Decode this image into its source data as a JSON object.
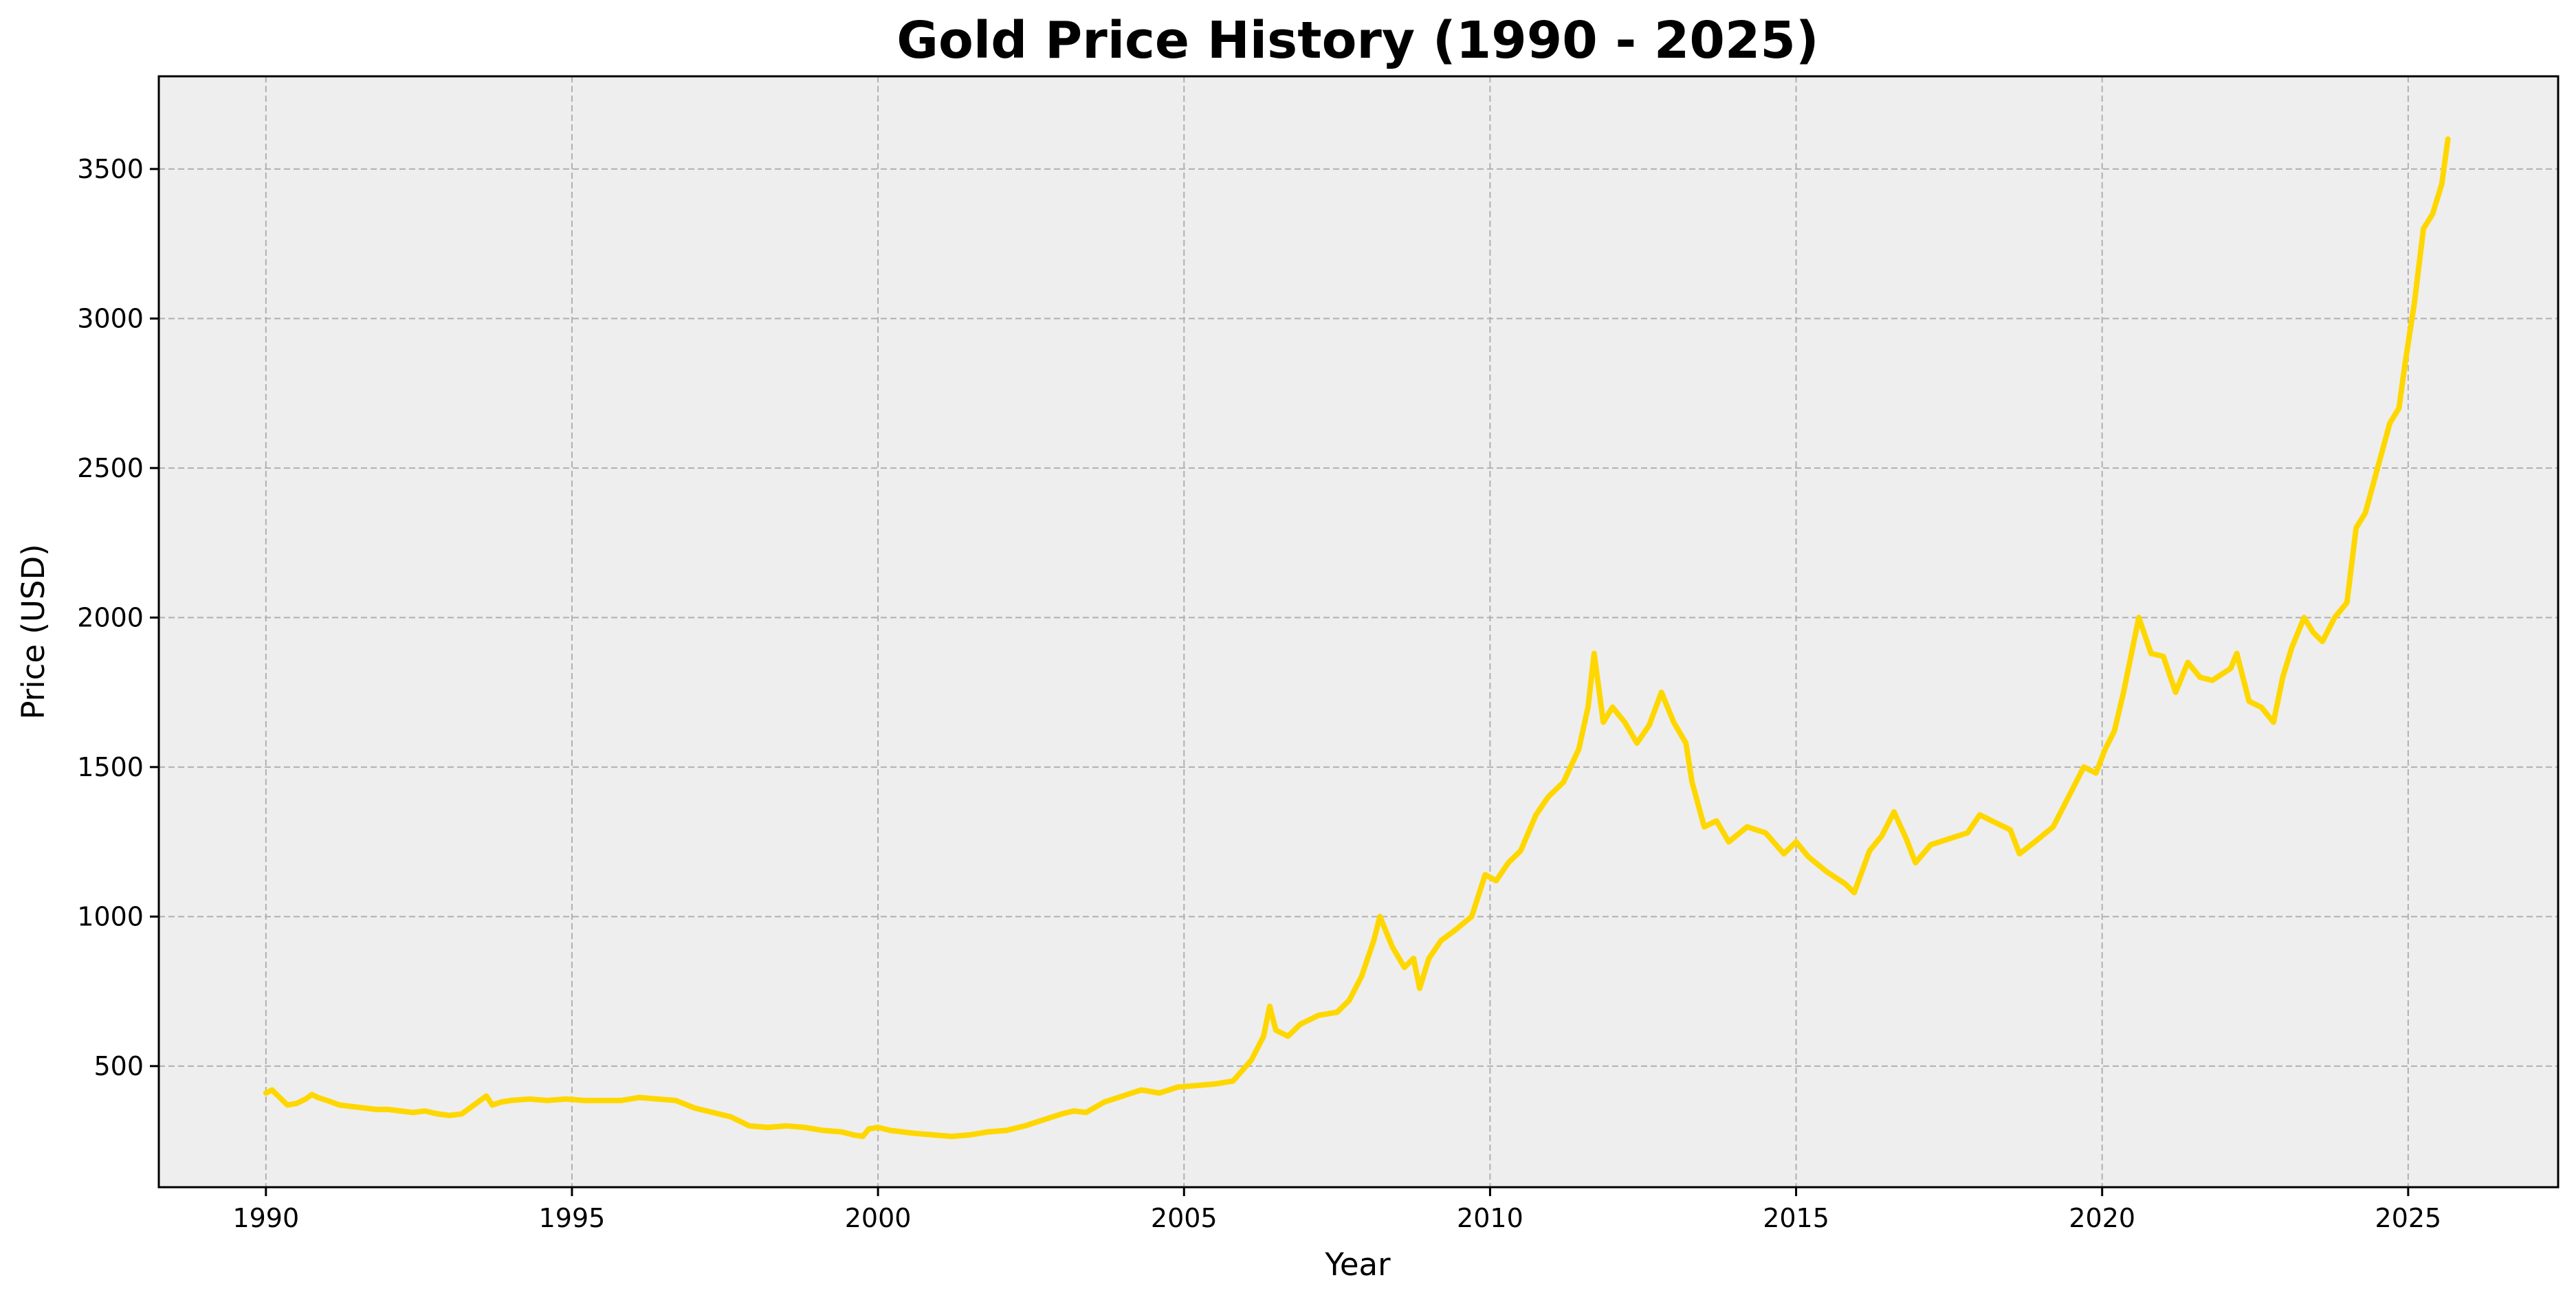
{
  "chart_data": {
    "type": "line",
    "title": "Gold Price History (1990 - 2025)",
    "xlabel": "Year",
    "ylabel": "Price (USD)",
    "xlim": [
      1988.25,
      2027.45
    ],
    "ylim": [
      95,
      3810
    ],
    "x_ticks": [
      1990,
      1995,
      2000,
      2005,
      2010,
      2015,
      2020,
      2025
    ],
    "y_ticks": [
      500,
      1000,
      1500,
      2000,
      2500,
      3000,
      3500
    ],
    "grid": true,
    "legend": "none",
    "colors": {
      "line": "#FFD700",
      "plot_background": "#EEEEEE",
      "grid": "#B0B0B0"
    },
    "series": [
      {
        "x": [
          1990.0,
          1990.1,
          1990.2,
          1990.35,
          1990.5,
          1990.65,
          1990.75,
          1990.85,
          1991.0,
          1991.2,
          1991.4,
          1991.6,
          1991.8,
          1992.0,
          1992.2,
          1992.4,
          1992.6,
          1992.8,
          1993.0,
          1993.2,
          1993.4,
          1993.6,
          1993.7,
          1993.85,
          1994.0,
          1994.3,
          1994.6,
          1994.9,
          1995.2,
          1995.5,
          1995.8,
          1996.1,
          1996.4,
          1996.7,
          1997.0,
          1997.3,
          1997.6,
          1997.9,
          1998.2,
          1998.5,
          1998.8,
          1999.1,
          1999.4,
          1999.6,
          1999.75,
          1999.85,
          2000.0,
          2000.2,
          2000.4,
          2000.6,
          2000.9,
          2001.2,
          2001.5,
          2001.8,
          2002.1,
          2002.4,
          2002.7,
          2003.0,
          2003.2,
          2003.4,
          2003.7,
          2004.0,
          2004.3,
          2004.6,
          2004.9,
          2005.2,
          2005.5,
          2005.8,
          2006.1,
          2006.3,
          2006.4,
          2006.5,
          2006.7,
          2006.9,
          2007.2,
          2007.5,
          2007.7,
          2007.9,
          2008.1,
          2008.2,
          2008.4,
          2008.6,
          2008.75,
          2008.85,
          2009.0,
          2009.2,
          2009.4,
          2009.7,
          2009.92,
          2010.1,
          2010.3,
          2010.5,
          2010.75,
          2010.95,
          2011.2,
          2011.45,
          2011.6,
          2011.7,
          2011.85,
          2012.0,
          2012.2,
          2012.4,
          2012.6,
          2012.8,
          2013.0,
          2013.2,
          2013.3,
          2013.5,
          2013.7,
          2013.9,
          2014.2,
          2014.5,
          2014.8,
          2015.0,
          2015.2,
          2015.5,
          2015.8,
          2015.95,
          2016.2,
          2016.4,
          2016.6,
          2016.8,
          2016.95,
          2017.2,
          2017.5,
          2017.8,
          2018.0,
          2018.2,
          2018.5,
          2018.65,
          2018.9,
          2019.2,
          2019.45,
          2019.7,
          2019.9,
          2020.05,
          2020.2,
          2020.35,
          2020.5,
          2020.6,
          2020.8,
          2021.0,
          2021.2,
          2021.4,
          2021.6,
          2021.8,
          2022.1,
          2022.2,
          2022.4,
          2022.6,
          2022.8,
          2022.95,
          2023.1,
          2023.3,
          2023.45,
          2023.6,
          2023.8,
          2024.0,
          2024.15,
          2024.3,
          2024.5,
          2024.7,
          2024.85,
          2024.95,
          2025.1,
          2025.25,
          2025.4,
          2025.55,
          2025.65
        ],
        "y": [
          410,
          420,
          400,
          370,
          375,
          390,
          405,
          395,
          385,
          370,
          365,
          360,
          355,
          355,
          350,
          345,
          350,
          340,
          335,
          340,
          370,
          400,
          370,
          380,
          385,
          390,
          385,
          390,
          385,
          385,
          385,
          395,
          390,
          385,
          360,
          345,
          330,
          300,
          295,
          300,
          295,
          285,
          280,
          270,
          265,
          290,
          295,
          285,
          280,
          275,
          270,
          265,
          270,
          280,
          285,
          300,
          320,
          340,
          350,
          345,
          380,
          400,
          420,
          410,
          430,
          435,
          440,
          450,
          520,
          600,
          700,
          620,
          600,
          640,
          670,
          680,
          720,
          800,
          920,
          1000,
          900,
          830,
          860,
          760,
          860,
          920,
          950,
          1000,
          1140,
          1120,
          1180,
          1220,
          1340,
          1400,
          1450,
          1560,
          1700,
          1880,
          1650,
          1700,
          1650,
          1580,
          1640,
          1750,
          1650,
          1580,
          1450,
          1300,
          1320,
          1250,
          1300,
          1280,
          1210,
          1250,
          1200,
          1150,
          1110,
          1080,
          1220,
          1270,
          1350,
          1260,
          1180,
          1240,
          1260,
          1280,
          1340,
          1320,
          1290,
          1210,
          1250,
          1300,
          1400,
          1500,
          1480,
          1560,
          1620,
          1750,
          1900,
          2000,
          1880,
          1870,
          1750,
          1850,
          1800,
          1790,
          1830,
          1880,
          1720,
          1700,
          1650,
          1800,
          1900,
          2000,
          1950,
          1920,
          2000,
          2050,
          2300,
          2350,
          2500,
          2650,
          2700,
          2850,
          3050,
          3300,
          3350,
          3450,
          3600
        ]
      }
    ]
  }
}
